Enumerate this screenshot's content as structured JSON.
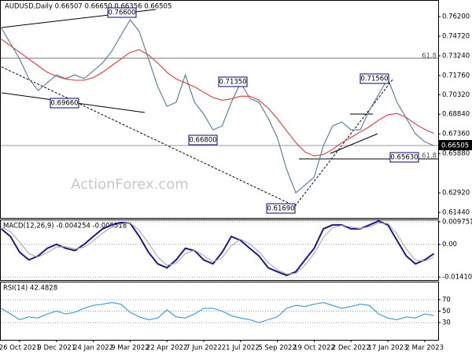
{
  "chart_data": [
    {
      "type": "line",
      "title": "AUDUSD,Daily  0.66507 0.66650 0.66356 0.66505",
      "categories": [
        null,
        null,
        "26 Oct 2021",
        null,
        null,
        null,
        "9 Dec 2021",
        null,
        null,
        null,
        "24 Jan 2022",
        null,
        null,
        null,
        "9 Mar 2022",
        null,
        null,
        null,
        "22 Apr 2022",
        null,
        null,
        null,
        "7 Jun 2022",
        null,
        null,
        null,
        "21 Jul 2022",
        null,
        null,
        null,
        "5 Sep 2022",
        null,
        null,
        null,
        "19 Oct 2022",
        null,
        null,
        null,
        "2 Dec 2022",
        null,
        null,
        null,
        "17 Jan 2023",
        null,
        null,
        null,
        "2 Mar 2023",
        null
      ],
      "series": [
        {
          "color": "#4f7896",
          "values": [
            0.7537,
            0.7418,
            0.73,
            0.7152,
            0.7063,
            0.7122,
            0.7181,
            0.7152,
            0.7181,
            0.7152,
            0.7211,
            0.727,
            0.7359,
            0.7478,
            0.7596,
            0.7507,
            0.73,
            0.7092,
            0.6944,
            0.6974,
            0.7181,
            0.6974,
            0.6885,
            0.6766,
            0.6796,
            0.6974,
            0.7122,
            0.7004,
            0.6974,
            0.6855,
            0.6707,
            0.647,
            0.6292,
            0.6351,
            0.6411,
            0.6648,
            0.6796,
            0.6826,
            0.6766,
            0.6766,
            0.6915,
            0.7033,
            0.7152,
            0.6974,
            0.6855,
            0.6737,
            0.6677,
            0.6648
          ]
        },
        {
          "color": "#e0393b",
          "values": [
            0.745,
            0.74,
            0.735,
            0.73,
            0.725,
            0.72,
            0.717,
            0.715,
            0.714,
            0.714,
            0.716,
            0.72,
            0.725,
            0.73,
            0.735,
            0.737,
            0.733,
            0.727,
            0.72,
            0.715,
            0.712,
            0.709,
            0.705,
            0.701,
            0.699,
            0.7,
            0.702,
            0.702,
            0.699,
            0.693,
            0.685,
            0.676,
            0.667,
            0.66,
            0.657,
            0.658,
            0.662,
            0.667,
            0.671,
            0.675,
            0.679,
            0.684,
            0.688,
            0.689,
            0.686,
            0.681,
            0.677,
            0.674
          ]
        }
      ],
      "ylim": [
        0.6103,
        0.7733
      ],
      "yticks": [
        {
          "value": 0.762,
          "label": "0.76200"
        },
        {
          "value": 0.7472,
          "label": "0.74720"
        },
        {
          "value": 0.7324,
          "label": "0.73240"
        },
        {
          "value": 0.7176,
          "label": "0.71760"
        },
        {
          "value": 0.7032,
          "label": "0.70320"
        },
        {
          "value": 0.6884,
          "label": "0.68840"
        },
        {
          "value": 0.6736,
          "label": "0.67360"
        },
        {
          "value": 0.6588,
          "label": "0.65880"
        },
        {
          "value": 0.6292,
          "label": "0.62920"
        },
        {
          "value": 0.6144,
          "label": "0.61440"
        }
      ],
      "grid": false,
      "annotations": [
        "0.76600",
        "0.69660",
        "0.71350",
        "0.66800",
        "0.71560",
        "0.65630",
        "0.61690"
      ],
      "levels": [
        "61.8",
        "61.8"
      ],
      "price_tag": "0.66505",
      "watermark": "ActionForex.com"
    },
    {
      "type": "line",
      "title": "MACD(12,26,9) -0.004254 -0.005518",
      "series": [
        {
          "color": "#1a1a8c",
          "values": [
            0.0067,
            0.0034,
            -0.0034,
            -0.0067,
            -0.005,
            -0.0017,
            0,
            -0.0017,
            -0.0027,
            0,
            0.0034,
            0.0067,
            0.0084,
            0.0094,
            0.0091,
            0.0034,
            -0.0034,
            -0.0084,
            -0.0101,
            -0.0067,
            -0.0017,
            -0.0027,
            -0.0067,
            -0.0084,
            -0.0034,
            0.0034,
            0.0017,
            -0.0017,
            -0.005,
            -0.0101,
            -0.0118,
            -0.0134,
            -0.0118,
            -0.0067,
            -0.0017,
            0.0067,
            0.0084,
            0.0084,
            0.0067,
            0.0067,
            0.0084,
            0.0101,
            0.0084,
            0.0017,
            -0.005,
            -0.0084,
            -0.0067,
            -0.004
          ]
        },
        {
          "color": "#a8a8a8",
          "values": [
            0.0075,
            0.0055,
            0.001,
            -0.004,
            -0.0055,
            -0.0035,
            -0.0012,
            -0.001,
            -0.002,
            -0.0012,
            0.0015,
            0.0048,
            0.0074,
            0.0088,
            0.0092,
            0.006,
            0.0005,
            -0.0055,
            -0.009,
            -0.0082,
            -0.004,
            -0.0025,
            -0.0048,
            -0.0075,
            -0.0058,
            -0.0005,
            0.0022,
            0.0002,
            -0.0032,
            -0.0078,
            -0.011,
            -0.0128,
            -0.0125,
            -0.009,
            -0.004,
            0.003,
            0.0072,
            0.0082,
            0.0075,
            0.0068,
            0.0076,
            0.0092,
            0.009,
            0.0045,
            -0.002,
            -0.0068,
            -0.0072,
            -0.0055
          ]
        }
      ],
      "ylim": [
        -0.0154,
        0.0104
      ],
      "yticks": [
        0.009751,
        {
          "value": 0,
          "label": "0.00"
        },
        -0.014107
      ],
      "grid": true
    },
    {
      "type": "line",
      "title": "RSI(14) 42.4828",
      "series": [
        {
          "color": "#3399dd",
          "values": [
            55,
            45,
            35,
            40,
            38,
            45,
            50,
            45,
            48,
            55,
            60,
            62,
            65,
            62,
            48,
            40,
            35,
            38,
            52,
            40,
            38,
            45,
            55,
            55,
            50,
            42,
            38,
            35,
            30,
            35,
            40,
            55,
            60,
            58,
            62,
            65,
            60,
            55,
            58,
            62,
            60,
            45,
            38,
            35,
            40,
            38,
            45,
            42.4828
          ]
        }
      ],
      "ylim": [
        0,
        100
      ],
      "yticks": [
        70,
        50,
        30
      ],
      "grid": true
    }
  ]
}
